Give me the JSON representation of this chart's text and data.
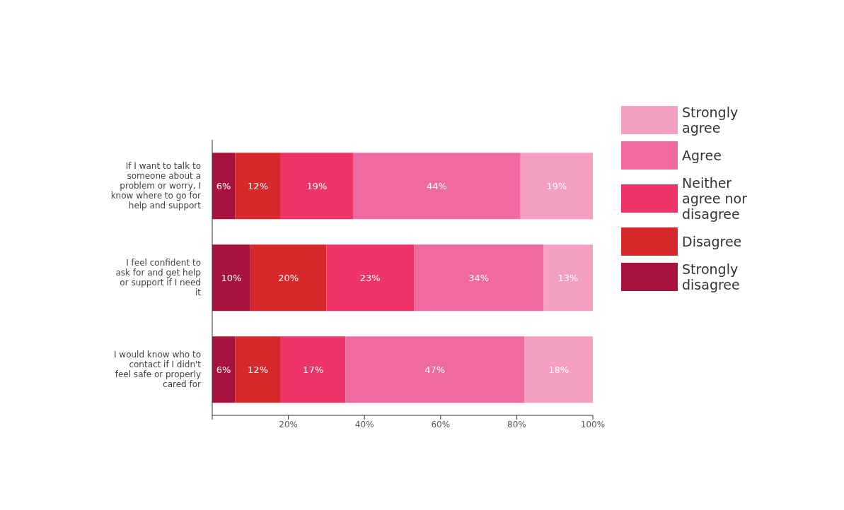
{
  "chart_data": {
    "type": "bar",
    "orientation": "horizontal",
    "stacked": true,
    "categories": [
      "If I want to talk to someone about a problem or worry, I know where to go for help and support",
      "I feel confident to ask for and get help or support if I need it",
      "I would know who to contact if I didn't feel safe or properly cared for"
    ],
    "series": [
      {
        "name": "Strongly disagree",
        "color": "#a8123e",
        "values": [
          6,
          10,
          6
        ],
        "value_labels": [
          "6%",
          "10%",
          "6%"
        ]
      },
      {
        "name": "Disagree",
        "color": "#d7282c",
        "values": [
          12,
          20,
          12
        ],
        "value_labels": [
          "12%",
          "20%",
          "12%"
        ]
      },
      {
        "name": "Neither agree nor disagree",
        "color": "#ee3468",
        "values": [
          19,
          23,
          17
        ],
        "value_labels": [
          "19%",
          "23%",
          "17%"
        ]
      },
      {
        "name": "Agree",
        "color": "#ef6a9e",
        "values": [
          44,
          34,
          47
        ],
        "value_labels": [
          "44%",
          "34%",
          "47%"
        ]
      },
      {
        "name": "Strongly agree",
        "color": "#f5a0c0",
        "values": [
          19,
          13,
          18
        ],
        "value_labels": [
          "19%",
          "13%",
          "18%"
        ]
      }
    ],
    "xlim": [
      0,
      100
    ],
    "xticks": [
      {
        "value": 0,
        "label": null
      },
      {
        "value": 20,
        "label": "20%"
      },
      {
        "value": 40,
        "label": "40%"
      },
      {
        "value": 60,
        "label": "60%"
      },
      {
        "value": 80,
        "label": "80%"
      },
      {
        "value": 100,
        "label": "100%"
      }
    ],
    "legend": "right"
  }
}
